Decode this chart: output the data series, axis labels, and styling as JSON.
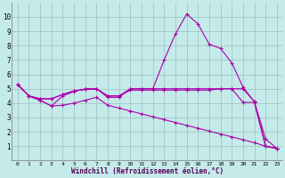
{
  "background_color": "#c5eaea",
  "grid_color": "#a0c8c8",
  "line_color": "#aa00aa",
  "marker": "+",
  "marker_size": 3,
  "marker_lw": 0.8,
  "line_width": 0.8,
  "xlim": [
    -0.5,
    23.5
  ],
  "ylim": [
    0,
    11
  ],
  "xlabel": "Windchill (Refroidissement éolien,°C)",
  "xticks": [
    0,
    1,
    2,
    3,
    4,
    5,
    6,
    7,
    8,
    9,
    10,
    11,
    12,
    13,
    14,
    15,
    16,
    17,
    18,
    19,
    20,
    21,
    22,
    23
  ],
  "yticks": [
    1,
    2,
    3,
    4,
    5,
    6,
    7,
    8,
    9,
    10
  ],
  "line1_x": [
    0,
    1,
    2,
    3,
    4,
    5,
    6,
    7,
    8,
    9,
    10,
    11,
    12,
    13,
    14,
    15,
    16,
    17,
    18,
    19,
    20,
    21,
    22,
    23
  ],
  "line1_y": [
    5.3,
    4.5,
    4.2,
    3.8,
    4.5,
    4.8,
    5.0,
    5.0,
    4.4,
    4.4,
    5.0,
    5.0,
    5.0,
    7.0,
    8.8,
    10.2,
    9.5,
    8.1,
    7.8,
    6.8,
    5.1,
    4.1,
    1.5,
    0.85
  ],
  "line2_x": [
    0,
    1,
    2,
    3,
    4,
    5,
    6,
    7,
    8,
    9,
    10,
    11,
    12,
    13,
    14,
    15,
    16,
    17,
    18,
    19,
    20,
    21,
    22,
    23
  ],
  "line2_y": [
    5.3,
    4.5,
    4.3,
    4.3,
    4.6,
    4.85,
    4.95,
    5.0,
    4.5,
    4.5,
    5.0,
    5.0,
    5.0,
    5.0,
    5.0,
    5.0,
    5.0,
    5.0,
    5.0,
    5.0,
    5.0,
    4.1,
    1.0,
    0.85
  ],
  "line3_x": [
    0,
    1,
    2,
    3,
    4,
    5,
    6,
    7,
    8,
    9,
    10,
    11,
    12,
    13,
    14,
    15,
    16,
    17,
    18,
    19,
    20,
    21,
    22,
    23
  ],
  "line3_y": [
    5.3,
    4.5,
    4.3,
    4.3,
    4.6,
    4.85,
    4.95,
    5.0,
    4.5,
    4.5,
    4.9,
    4.9,
    4.9,
    4.9,
    4.9,
    4.9,
    4.9,
    4.9,
    5.0,
    5.0,
    4.05,
    4.05,
    1.0,
    0.85
  ],
  "line4_x": [
    0,
    1,
    2,
    3,
    4,
    5,
    6,
    7,
    8,
    9,
    10,
    11,
    12,
    13,
    14,
    15,
    16,
    17,
    18,
    19,
    20,
    21,
    22,
    23
  ],
  "line4_y": [
    5.3,
    4.5,
    4.2,
    3.8,
    3.85,
    4.0,
    4.2,
    4.4,
    3.85,
    3.65,
    3.45,
    3.25,
    3.05,
    2.85,
    2.65,
    2.45,
    2.25,
    2.05,
    1.85,
    1.65,
    1.45,
    1.25,
    1.0,
    0.85
  ]
}
